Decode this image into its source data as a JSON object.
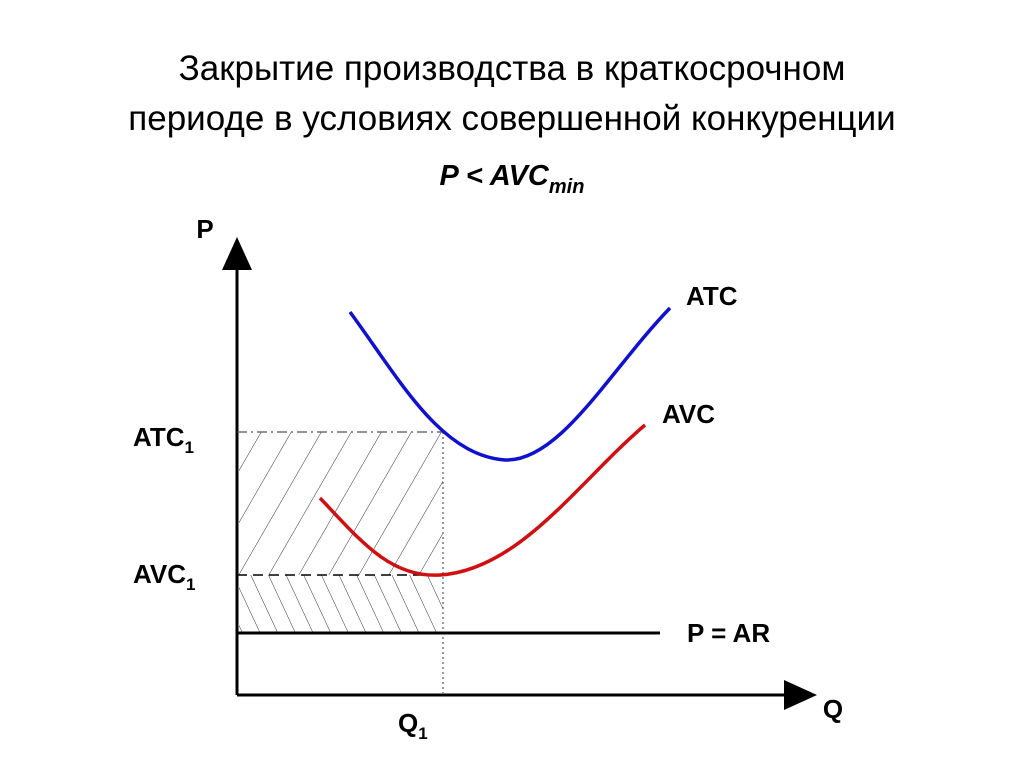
{
  "header": {
    "title_line1": "Закрытие производства в краткосрочном",
    "title_line2": "периоде в условиях совершенной конкуренции",
    "condition": "P < AVC",
    "condition_sub": "min"
  },
  "axes": {
    "y_label": "P",
    "x_label": "Q"
  },
  "labels": {
    "atc_curve": "ATC",
    "avc_curve": "AVC",
    "price_line": "P = AR",
    "atc1": "ATC",
    "atc1_sub": "1",
    "avc1": "AVC",
    "avc1_sub": "1",
    "q1": "Q",
    "q1_sub": "1"
  }
}
